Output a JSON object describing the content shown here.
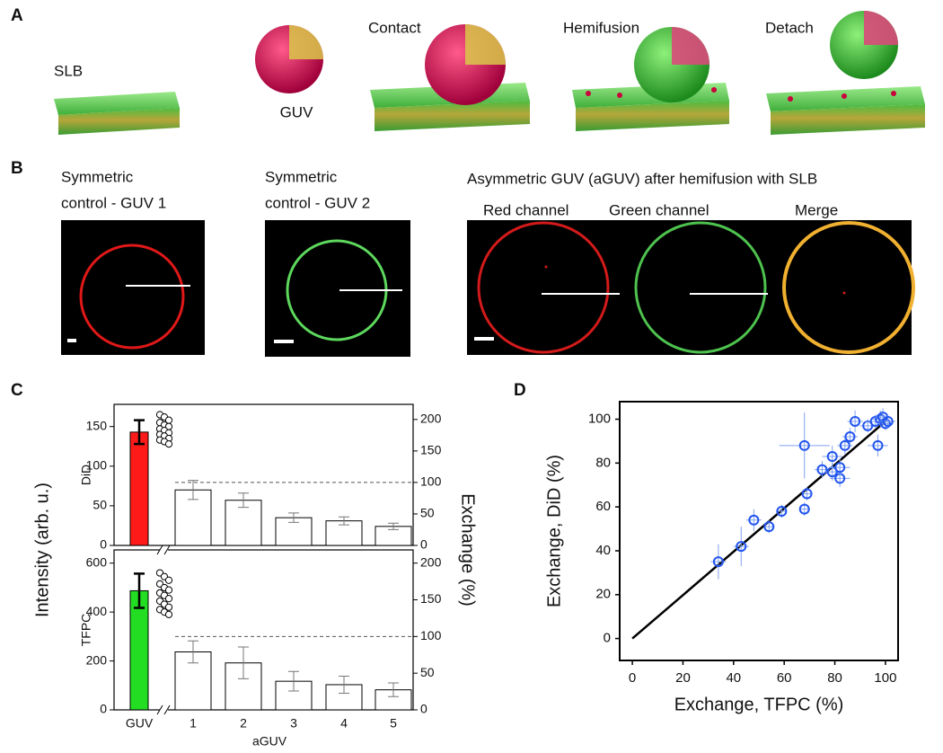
{
  "figure": {
    "panel_labels": [
      "A",
      "B",
      "C",
      "D"
    ],
    "a_labels": [
      "SLB",
      "GUV",
      "Contact",
      "Hemifusion",
      "Detach"
    ],
    "b": {
      "guv1": [
        "Symmetric",
        "control - GUV 1"
      ],
      "guv2": [
        "Symmetric",
        "control - GUV 2"
      ],
      "agtitle": "Asymmetric GUV (aGUV) after hemifusion with SLB",
      "channels": [
        "Red channel",
        "Green channel",
        "Merge"
      ]
    }
  },
  "chart_data": [
    {
      "type": "bar",
      "ylabel": "Intensity (arb. u.)",
      "y2label": "Exchange (%)",
      "subplot_label": "DiD",
      "values": [
        143,
        70,
        57,
        35,
        31,
        24
      ],
      "errors": [
        15,
        12,
        9,
        6,
        5,
        4
      ],
      "colors": [
        "#ff1a1a",
        "#ffffff",
        "#ffffff",
        "#ffffff",
        "#ffffff",
        "#ffffff"
      ],
      "dots": [
        165,
        162,
        158,
        155,
        152,
        150,
        147,
        145,
        142,
        140,
        138,
        135,
        133,
        131,
        128
      ],
      "ylim": [
        0,
        178
      ],
      "yticks": [
        0,
        50,
        100,
        150
      ],
      "y2lim": [
        0,
        224
      ],
      "y2ticks": [
        0,
        50,
        100,
        150,
        200
      ],
      "reference_line": 100
    },
    {
      "type": "bar",
      "subplot_label": "TFPC",
      "categories": [
        "GUV",
        "1",
        "2",
        "3",
        "4",
        "5"
      ],
      "xlabel": "aGUV",
      "values": [
        487,
        237,
        192,
        117,
        103,
        82
      ],
      "errors": [
        70,
        45,
        65,
        40,
        35,
        28
      ],
      "colors": [
        "#22dd22",
        "#ffffff",
        "#ffffff",
        "#ffffff",
        "#ffffff",
        "#ffffff"
      ],
      "dots": [
        560,
        545,
        530,
        515,
        500,
        490,
        478,
        468,
        455,
        445,
        432,
        420,
        410,
        400,
        390
      ],
      "ylim": [
        0,
        654
      ],
      "yticks": [
        0,
        200,
        400,
        600
      ],
      "y2lim": [
        0,
        218
      ],
      "y2ticks": [
        0,
        50,
        100,
        150,
        200
      ],
      "reference_line": 100
    },
    {
      "type": "scatter",
      "xlabel": "Exchange, TFPC (%)",
      "ylabel": "Exchange, DiD (%)",
      "color": "#2255ee",
      "x": [
        34,
        43,
        48,
        54,
        59,
        68,
        69,
        68,
        75,
        79,
        79,
        82,
        82,
        84,
        86,
        88,
        93,
        96,
        97,
        98,
        99,
        100,
        101
      ],
      "y": [
        35,
        42,
        54,
        51,
        58,
        59,
        66,
        88,
        77,
        76,
        83,
        73,
        78,
        88,
        92,
        99,
        97,
        99,
        88,
        100,
        101,
        98,
        99
      ],
      "xerr": [
        3,
        3,
        3,
        2,
        2,
        2,
        2,
        10,
        3,
        3,
        4,
        4,
        4,
        3,
        3,
        3,
        3,
        4,
        4,
        3,
        3,
        3,
        3
      ],
      "yerr": [
        8,
        9,
        5,
        3,
        3,
        3,
        3,
        15,
        4,
        4,
        5,
        4,
        4,
        4,
        4,
        5,
        3,
        3,
        5,
        4,
        4,
        3,
        3
      ],
      "fit_x": [
        0,
        100
      ],
      "fit_y": [
        0,
        99
      ],
      "xlim": [
        -5,
        105
      ],
      "xticks": [
        0,
        20,
        40,
        60,
        80,
        100
      ],
      "ylim": [
        -10,
        108
      ],
      "yticks": [
        0,
        20,
        40,
        60,
        80,
        100
      ]
    }
  ]
}
